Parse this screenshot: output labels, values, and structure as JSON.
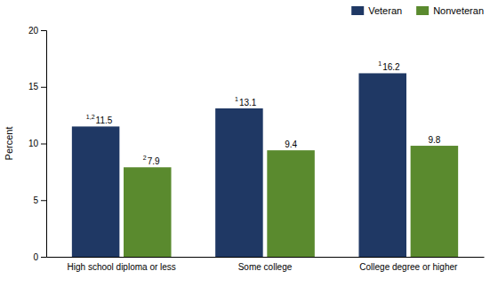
{
  "chart_data": {
    "type": "bar",
    "categories": [
      "High school diploma or less",
      "Some college",
      "College degree or higher"
    ],
    "series": [
      {
        "name": "Veteran",
        "color": "#1F3864",
        "values": [
          11.5,
          13.1,
          16.2
        ],
        "superscripts": [
          "1,2",
          "1",
          "1"
        ]
      },
      {
        "name": "Nonveteran",
        "color": "#5A8A2E",
        "values": [
          7.9,
          9.4,
          9.8
        ],
        "superscripts": [
          "2",
          null,
          null
        ]
      }
    ],
    "y_label": "Percent",
    "ylim": [
      0,
      20
    ],
    "yticks": [
      0,
      5,
      10,
      15,
      20
    ],
    "grid": false,
    "legend": "top-right",
    "data_labels": true
  }
}
